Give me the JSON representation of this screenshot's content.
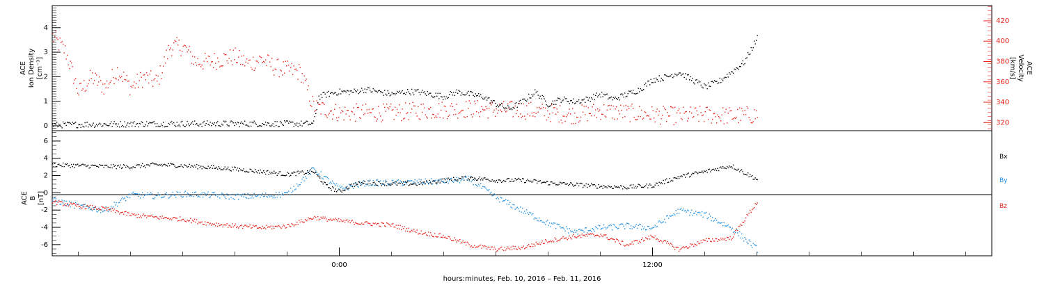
{
  "colors": {
    "black": "#000000",
    "red": "#e8231b",
    "blue": "#1f8fe0"
  },
  "xaxis": {
    "label": "hours:minutes, Feb. 10, 2016 – Feb. 11, 2016",
    "range_hours": [
      -11.0,
      25.0
    ],
    "major_ticks": [
      {
        "hour": 0,
        "label": "0:00"
      },
      {
        "hour": 12,
        "label": "12:00"
      }
    ],
    "minor_every_hours": 2
  },
  "chart_data": [
    {
      "type": "scatter",
      "panel": "top",
      "ylabel_left": [
        "ACE",
        "Ion Density",
        "[cm⁻³]"
      ],
      "ylabel_right": [
        "ACE",
        "Velocity",
        "[km/s]"
      ],
      "ylim_left": [
        -0.2,
        4.9
      ],
      "yticks_left": [
        "0",
        "1",
        "2",
        "3",
        "4"
      ],
      "ylim_right": [
        312,
        435
      ],
      "yticks_right": [
        "320",
        "340",
        "360",
        "380",
        "400",
        "420"
      ],
      "series": [
        {
          "axis": "left",
          "color": "black",
          "x": [
            -11.0,
            -9.0,
            -7.0,
            -5.0,
            -3.0,
            -1.0,
            -0.8,
            -0.5,
            0.0,
            0.5,
            1.0,
            1.5,
            2.0,
            2.5,
            3.0,
            3.5,
            4.0,
            4.5,
            5.0,
            5.5,
            6.0,
            6.5,
            7.0,
            7.5,
            8.0,
            8.5,
            9.0,
            9.5,
            10.0,
            10.5,
            11.0,
            11.5,
            12.0,
            12.5,
            13.0,
            13.5,
            14.0,
            14.5,
            15.0,
            15.5,
            16.0
          ],
          "y": [
            0.05,
            0.08,
            0.1,
            0.1,
            0.1,
            0.1,
            1.2,
            1.3,
            1.4,
            1.4,
            1.5,
            1.4,
            1.3,
            1.4,
            1.4,
            1.3,
            1.2,
            1.4,
            1.3,
            1.2,
            0.9,
            0.7,
            1.0,
            1.4,
            0.9,
            1.1,
            1.0,
            1.1,
            1.3,
            1.1,
            1.3,
            1.5,
            1.9,
            2.0,
            2.2,
            1.9,
            1.6,
            1.8,
            2.2,
            2.6,
            3.6
          ]
        },
        {
          "axis": "right",
          "color": "red",
          "x": [
            -11.0,
            -10.5,
            -10.0,
            -9.5,
            -9.0,
            -8.5,
            -8.0,
            -7.5,
            -7.0,
            -6.5,
            -6.0,
            -5.5,
            -5.0,
            -4.5,
            -4.0,
            -3.5,
            -3.0,
            -2.5,
            -2.0,
            -1.5,
            -1.0,
            -0.5,
            0.0,
            1.0,
            2.0,
            3.0,
            4.0,
            5.0,
            6.0,
            7.0,
            8.0,
            9.0,
            10.0,
            11.0,
            12.0,
            13.0,
            14.0,
            15.0,
            16.0
          ],
          "y": [
            405,
            390,
            350,
            365,
            355,
            372,
            355,
            365,
            360,
            395,
            395,
            380,
            380,
            383,
            385,
            378,
            383,
            375,
            372,
            370,
            336,
            333,
            330,
            330,
            330,
            332,
            333,
            334,
            333,
            333,
            330,
            328,
            332,
            330,
            328,
            327,
            328,
            327,
            328
          ]
        }
      ]
    },
    {
      "type": "scatter",
      "panel": "bottom",
      "ylabel_left": [
        "ACE",
        "B",
        "[nT]"
      ],
      "ylim": [
        -7.3,
        7.2
      ],
      "yticks": [
        "-6",
        "-4",
        "-2",
        "0",
        "2",
        "4",
        "6"
      ],
      "zero_line": true,
      "series": [
        {
          "name": "Bx",
          "color": "black",
          "x": [
            -11.0,
            -10.0,
            -9.0,
            -8.0,
            -7.0,
            -6.0,
            -5.0,
            -4.0,
            -3.0,
            -2.0,
            -1.0,
            -0.5,
            0.0,
            0.5,
            1.0,
            2.0,
            3.0,
            4.0,
            5.0,
            6.0,
            7.0,
            8.0,
            9.0,
            10.0,
            11.0,
            12.0,
            13.0,
            14.0,
            15.0,
            16.0
          ],
          "y": [
            3.3,
            3.2,
            3.1,
            3.1,
            3.3,
            3.2,
            3.0,
            2.8,
            2.5,
            2.2,
            2.5,
            0.8,
            0.2,
            1.0,
            1.2,
            1.1,
            1.1,
            1.5,
            1.8,
            1.5,
            1.5,
            1.2,
            1.0,
            0.8,
            0.7,
            0.9,
            1.9,
            2.5,
            3.2,
            1.6
          ]
        },
        {
          "name": "By",
          "color": "blue",
          "x": [
            -11.0,
            -10.0,
            -9.0,
            -8.0,
            -7.0,
            -6.0,
            -5.0,
            -4.0,
            -3.0,
            -2.0,
            -1.0,
            0.0,
            1.0,
            2.0,
            3.0,
            4.0,
            5.0,
            6.0,
            7.0,
            8.0,
            9.0,
            10.0,
            11.0,
            12.0,
            13.0,
            14.0,
            15.0,
            16.0
          ],
          "y": [
            -0.8,
            -1.5,
            -2.0,
            -0.2,
            -0.3,
            -0.1,
            -0.2,
            -0.4,
            -0.3,
            -0.1,
            2.8,
            0.5,
            1.2,
            1.2,
            1.3,
            1.4,
            1.6,
            -0.5,
            -2.0,
            -3.5,
            -4.5,
            -4.0,
            -3.8,
            -4.0,
            -2.0,
            -2.5,
            -4.0,
            -6.5
          ]
        },
        {
          "name": "Bz",
          "color": "red",
          "x": [
            -11.0,
            -10.0,
            -9.0,
            -8.0,
            -7.0,
            -6.0,
            -5.0,
            -4.0,
            -3.0,
            -2.0,
            -1.0,
            0.0,
            1.0,
            2.0,
            3.0,
            4.0,
            5.0,
            6.0,
            7.0,
            8.0,
            9.0,
            10.0,
            11.0,
            12.0,
            13.0,
            14.0,
            15.0,
            16.0
          ],
          "y": [
            -1.0,
            -1.5,
            -1.8,
            -2.5,
            -2.8,
            -3.0,
            -3.5,
            -3.8,
            -4.0,
            -3.8,
            -2.8,
            -3.2,
            -3.5,
            -3.7,
            -4.5,
            -5.0,
            -6.0,
            -6.5,
            -6.3,
            -5.5,
            -5.0,
            -4.8,
            -6.0,
            -5.0,
            -6.5,
            -5.5,
            -5.2,
            -1.0
          ]
        }
      ]
    }
  ]
}
